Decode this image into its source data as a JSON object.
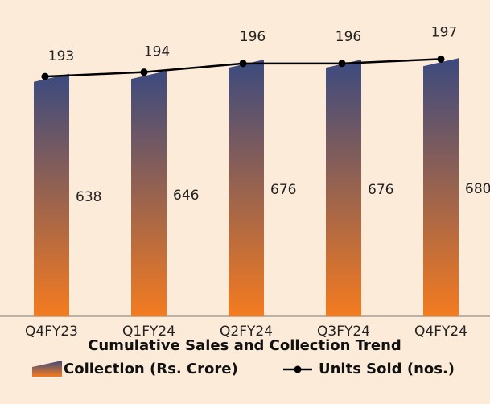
{
  "chart_data": {
    "type": "bar",
    "title": "Cumulative Sales and Collection Trend",
    "categories": [
      "Q4FY23",
      "Q1FY24",
      "Q2FY24",
      "Q3FY24",
      "Q4FY24"
    ],
    "series": [
      {
        "name": "Collection (Rs. Crore)",
        "type": "bar",
        "color": [
          "#3b4a7f",
          "#f47b20"
        ],
        "values": [
          638,
          646,
          676,
          676,
          680
        ]
      },
      {
        "name": "Units Sold (nos.)",
        "type": "line",
        "color": "#000000",
        "axis": "y2",
        "values": [
          193,
          194,
          196,
          196,
          197
        ]
      }
    ],
    "ylim": [
      0,
      700
    ],
    "y2lim": [
      138,
      198
    ]
  }
}
